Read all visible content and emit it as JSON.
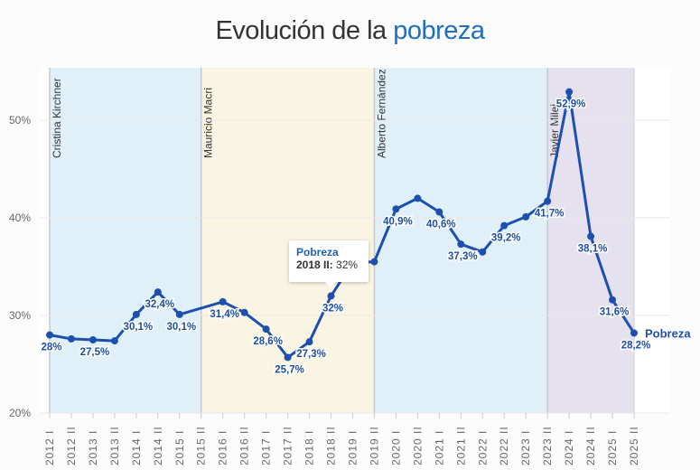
{
  "title": {
    "prefix": "Evolución de la ",
    "highlight": "pobreza"
  },
  "tooltip": {
    "series": "Pobreza",
    "key": "2018 II:",
    "value": " 32%"
  },
  "chart_data": {
    "type": "line",
    "title": "Evolución de la pobreza",
    "xlabel": "",
    "ylabel": "",
    "ylim": [
      20,
      55
    ],
    "yticks": [
      "20%",
      "30%",
      "40%",
      "50%"
    ],
    "ytick_values": [
      20,
      30,
      40,
      50
    ],
    "grid": true,
    "categories": [
      "2012 I",
      "2012 II",
      "2013 I",
      "2013 II",
      "2014 I",
      "2014 II",
      "2015 I",
      "2015 II",
      "2016 I",
      "2016 II",
      "2017 I",
      "2017 II",
      "2018 I",
      "2018 II",
      "2019 I",
      "2019 II",
      "2020 I",
      "2020 II",
      "2021 I",
      "2021 II",
      "2022 I",
      "2022 II",
      "2023 I",
      "2023 II",
      "2024 I",
      "2024 II",
      "2025 I",
      "2025 II"
    ],
    "series": [
      {
        "name": "Pobreza",
        "color": "#1d4fb0",
        "values": [
          28.0,
          27.6,
          27.5,
          27.4,
          30.1,
          32.4,
          30.1,
          null,
          31.4,
          30.3,
          28.6,
          25.7,
          27.3,
          32.0,
          35.4,
          35.5,
          40.9,
          42.0,
          40.6,
          37.3,
          36.5,
          39.2,
          40.1,
          41.7,
          52.9,
          38.1,
          31.6,
          28.2
        ],
        "labels": [
          "28%",
          null,
          "27,5%",
          null,
          "30,1%",
          "32,4%",
          "30,1%",
          null,
          "31,4%",
          null,
          "28,6%",
          "25,7%",
          "27,3%",
          "32%",
          null,
          null,
          "40,9%",
          null,
          "40,6%",
          "37,3%",
          null,
          "39,2%",
          null,
          "41,7%",
          "52,9%",
          "38,1%",
          "31,6%",
          "28,2%"
        ]
      }
    ],
    "legend": "end-of-line",
    "bands": [
      {
        "label": "Cristina Kirchner",
        "from": "2012 I",
        "to": "2015 II",
        "color": "#dff0f9"
      },
      {
        "label": "Mauricio Macri",
        "from": "2015 II",
        "to": "2019 II",
        "color": "#faf5e2"
      },
      {
        "label": "Alberto Fernández",
        "from": "2019 II",
        "to": "2023 II",
        "color": "#dff0f9"
      },
      {
        "label": "Javier Milei",
        "from": "2023 II",
        "to": "2025 II",
        "color": "#e6e1ee"
      }
    ]
  }
}
